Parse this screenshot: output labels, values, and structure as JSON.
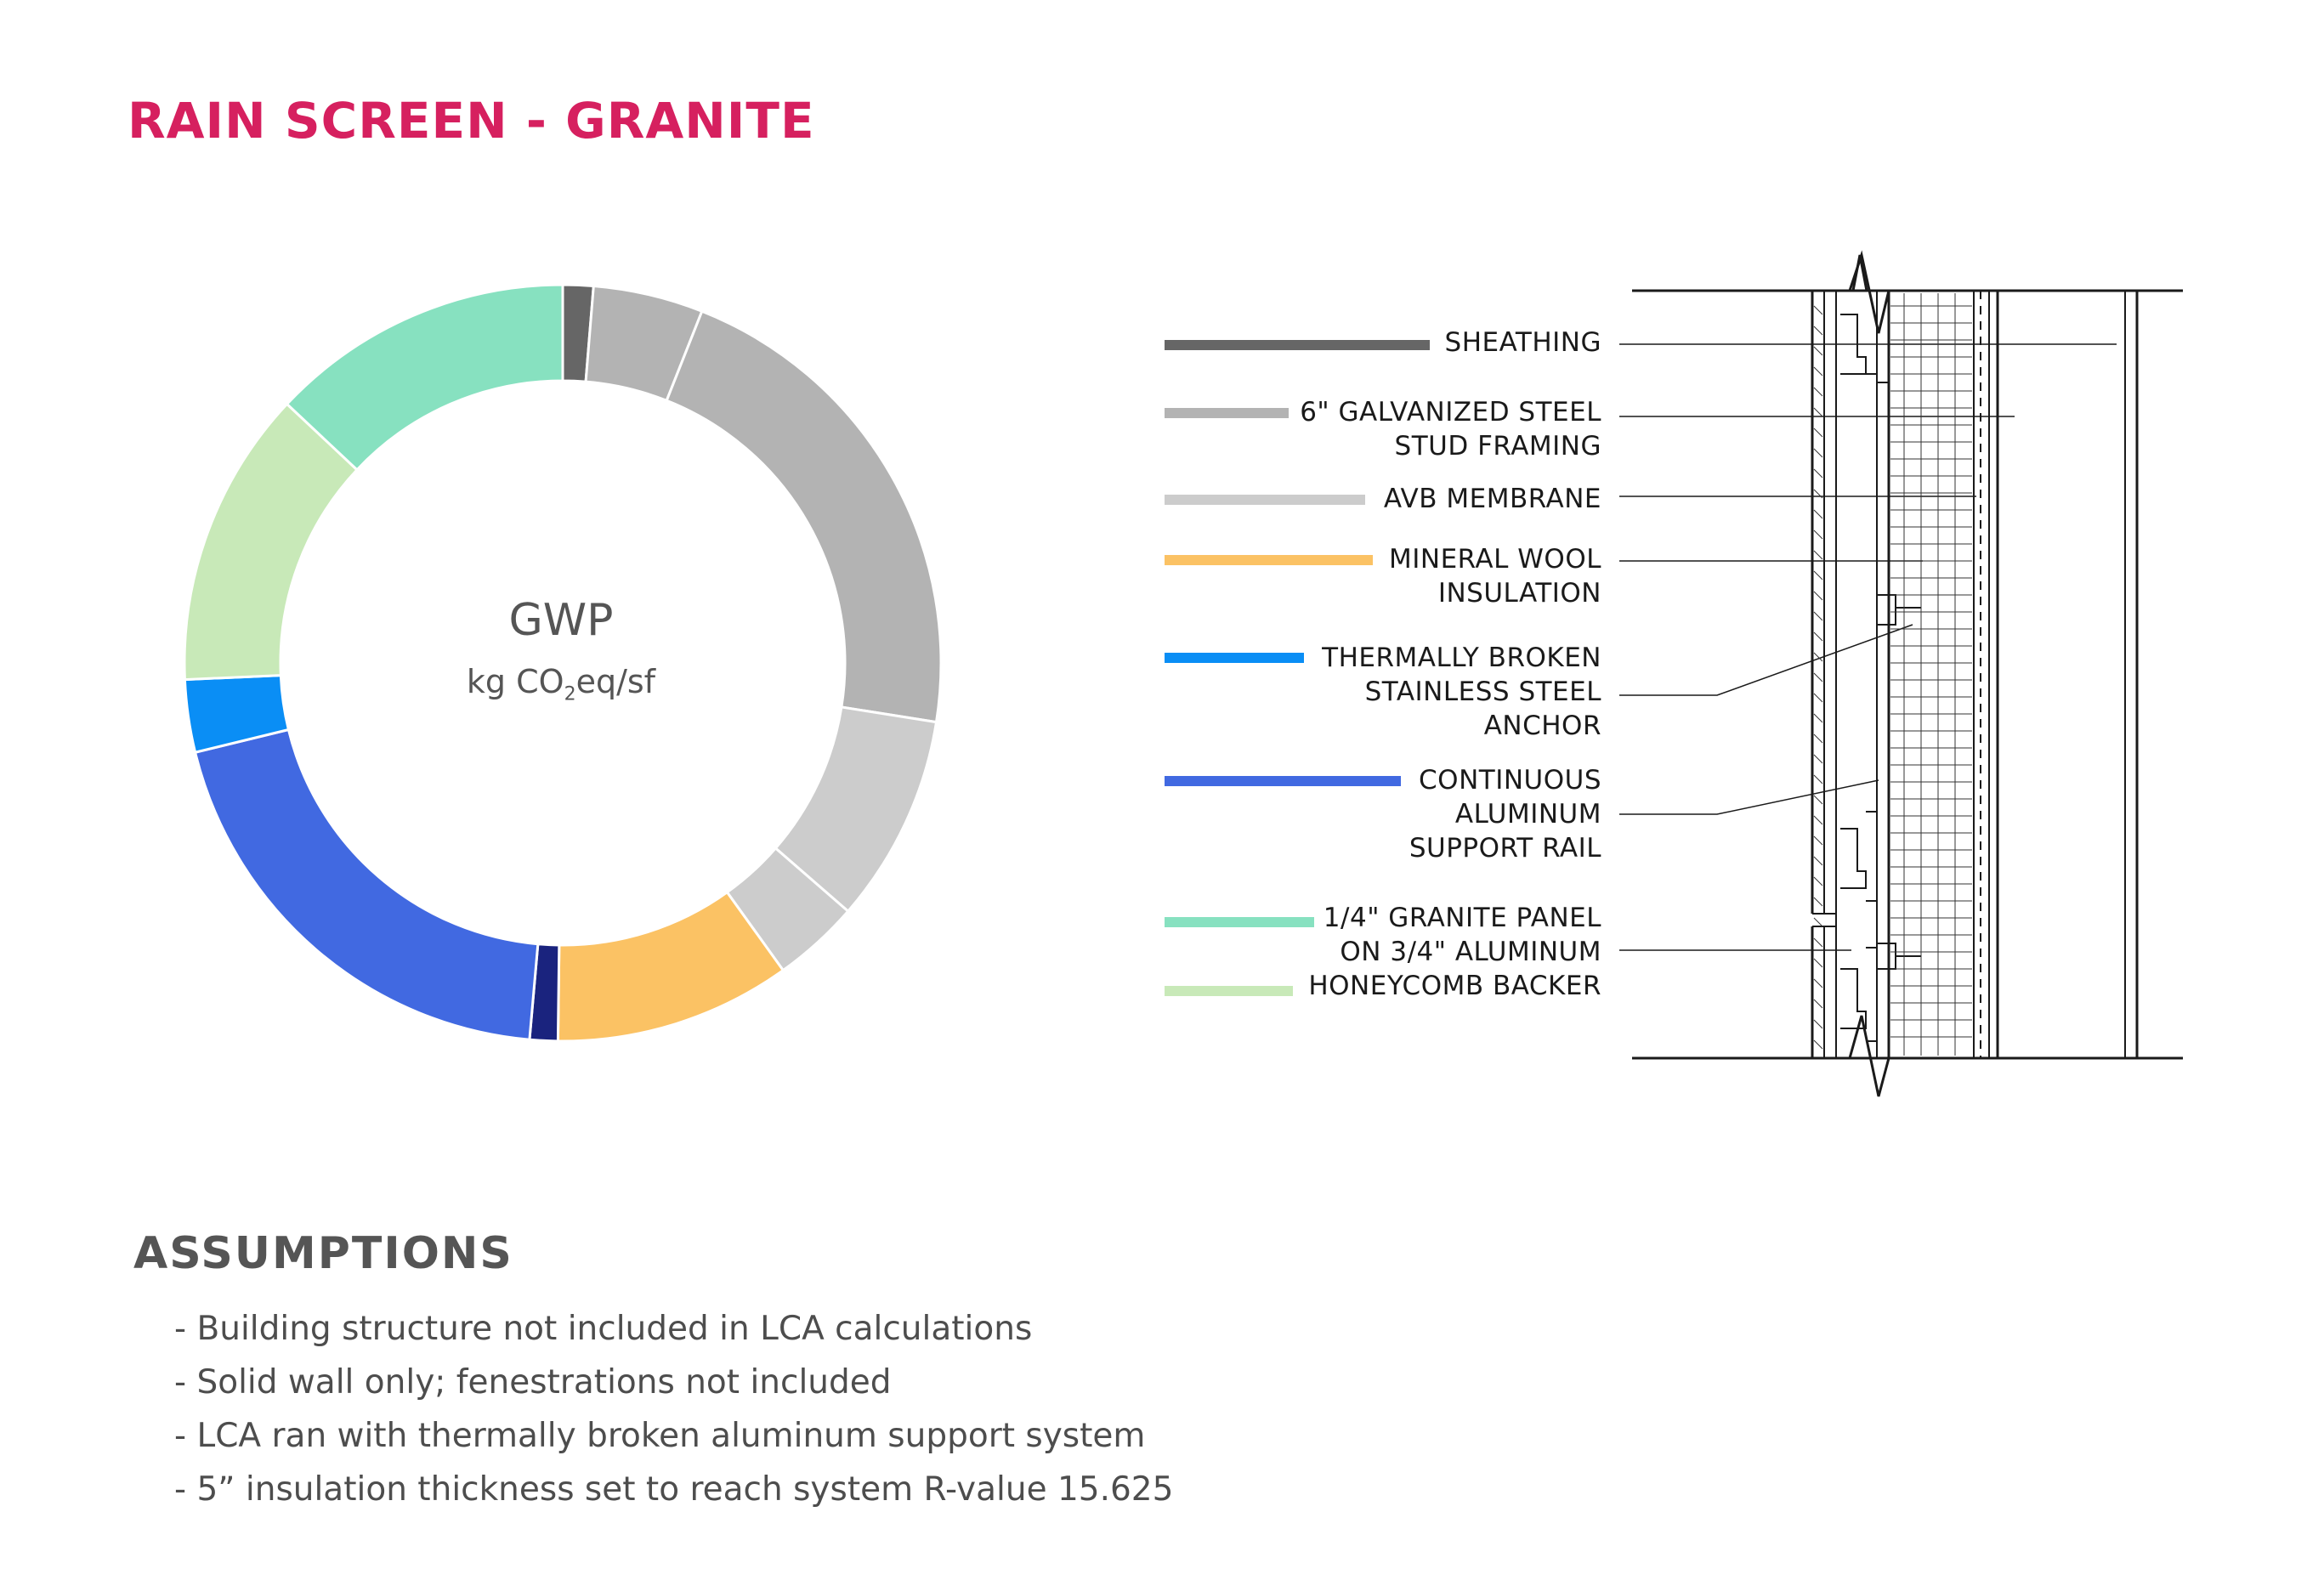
{
  "page_title": "RAIN SCREEN - GRANITE",
  "chart_data": {
    "type": "pie",
    "title": "GWP",
    "unit_prefix": "kg CO",
    "unit_sub": "2",
    "unit_suffix": "eq/sf",
    "slices": [
      {
        "label": "SHEATHING",
        "value": 1.3,
        "color": "#666666"
      },
      {
        "label": "6\" GALVANIZED STEEL STUD FRAMING",
        "value": 4.7,
        "color": "#b3b3b3"
      },
      {
        "label": "6\" GALVANIZED STEEL STUD FRAMING",
        "value": 21.5,
        "color": "#b3b3b3"
      },
      {
        "label": "AVB MEMBRANE",
        "value": 8.9,
        "color": "#cccccc"
      },
      {
        "label": "AVB MEMBRANE",
        "value": 3.7,
        "color": "#cccccc"
      },
      {
        "label": "MINERAL WOOL INSULATION",
        "value": 10.1,
        "color": "#fbc264"
      },
      {
        "label": "",
        "value": 1.2,
        "color": "#1a237e"
      },
      {
        "label": "CONTINUOUS ALUMINUM SUPPORT RAIL",
        "value": 19.8,
        "color": "#4169e1"
      },
      {
        "label": "THERMALLY BROKEN STAINLESS STEEL ANCHOR",
        "value": 3.1,
        "color": "#0a8ef5"
      },
      {
        "label": "HONEYCOMB BACKER",
        "value": 12.7,
        "color": "#c8e9b8"
      },
      {
        "label": "1/4\" GRANITE PANEL",
        "value": 13.0,
        "color": "#87e1c0"
      }
    ]
  },
  "legend": [
    {
      "label": "SHEATHING",
      "color": "#666666"
    },
    {
      "label": "6\" GALVANIZED STEEL\nSTUD FRAMING",
      "color": "#b3b3b3"
    },
    {
      "label": "AVB MEMBRANE",
      "color": "#cccccc"
    },
    {
      "label": "MINERAL WOOL\nINSULATION",
      "color": "#fbc264"
    },
    {
      "label": "THERMALLY BROKEN\nSTAINLESS STEEL\nANCHOR",
      "color": "#0a8ef5"
    },
    {
      "label": "CONTINUOUS\nALUMINUM\nSUPPORT RAIL",
      "color": "#4169e1"
    },
    {
      "label": "1/4\" GRANITE PANEL\nON 3/4\" ALUMINUM\nHONEYCOMB BACKER",
      "color": "#87e1c0",
      "color2": "#c8e9b8"
    }
  ],
  "assumptions": {
    "heading": "ASSUMPTIONS",
    "items": [
      "- Building structure not included in LCA calculations",
      "- Solid wall only; fenestrations not included",
      "- LCA ran with thermally broken aluminum support system",
      "- 5” insulation thickness set to reach system R-value 15.625"
    ]
  }
}
